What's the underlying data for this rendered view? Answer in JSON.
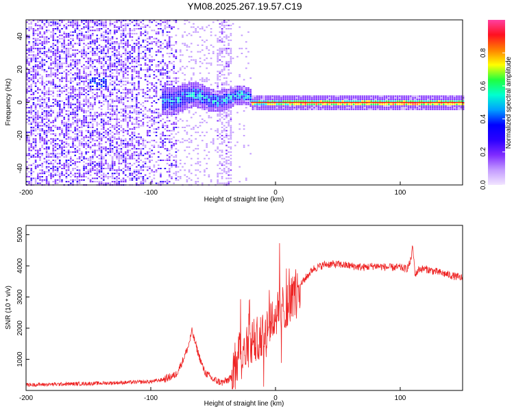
{
  "title": "YM08.2025.267.19.57.C19",
  "chart_data": [
    {
      "type": "heatmap",
      "panel": "spectrogram",
      "xlabel": "Height of straight line (km)",
      "ylabel": "Frequency (Hz)",
      "xlim": [
        -200,
        150
      ],
      "ylim": [
        -50,
        50
      ],
      "xticks": [
        "-200",
        "-100",
        "0",
        "100"
      ],
      "yticks": [
        "40",
        "20",
        "0",
        "-20",
        "-40"
      ],
      "xtick_values": [
        -200,
        -100,
        0,
        100
      ],
      "ytick_values": [
        40,
        20,
        0,
        -20,
        -40
      ],
      "colorbar": {
        "label": "Normalized spectral amplitude",
        "range": [
          0,
          1
        ],
        "ticks": [
          "0.0",
          "0.2",
          "0.4",
          "0.6",
          "0.8"
        ],
        "tick_values": [
          0.0,
          0.2,
          0.4,
          0.6,
          0.8
        ],
        "colormap": [
          "#f2e6ff",
          "#c39bff",
          "#7f2bff",
          "#2a00ff",
          "#0000ff",
          "#00a0ff",
          "#00ffd0",
          "#20ff40",
          "#ffff00",
          "#ff8000",
          "#ff1020",
          "#ff40a0"
        ]
      },
      "features": {
        "diffuse_noise_region_km": [
          -200,
          -80
        ],
        "noise_stripe_km": [
          -48,
          -35
        ],
        "strong_band_start_km": -90,
        "line_frequency_hz": 0
      }
    },
    {
      "type": "line",
      "panel": "snr",
      "xlabel": "Height of straight line (km)",
      "ylabel": "SNR (10 * v/v)",
      "xlim": [
        -200,
        150
      ],
      "ylim": [
        0,
        5300
      ],
      "xticks": [
        "-200",
        "-100",
        "0",
        "100"
      ],
      "yticks": [
        "5000",
        "4000",
        "3000",
        "2000",
        "1000"
      ],
      "xtick_values": [
        -200,
        -100,
        0,
        100
      ],
      "ytick_values": [
        5000,
        4000,
        3000,
        2000,
        1000
      ],
      "color": "#ee2222",
      "series": [
        {
          "name": "SNR",
          "x": [
            -200,
            -150,
            -100,
            -90,
            -80,
            -75,
            -70,
            -67,
            -62,
            -57,
            -50,
            -43,
            -40,
            -35,
            -30,
            -25,
            -20,
            -15,
            -10,
            -5,
            0,
            5,
            10,
            20,
            30,
            40,
            50,
            60,
            70,
            80,
            90,
            100,
            105,
            108,
            110,
            112,
            115,
            120,
            130,
            140,
            150
          ],
          "y": [
            180,
            220,
            280,
            350,
            500,
            900,
            1400,
            1900,
            1200,
            600,
            350,
            250,
            300,
            400,
            1200,
            1500,
            1600,
            1700,
            1800,
            2200,
            2400,
            2600,
            2800,
            3400,
            3900,
            4050,
            4050,
            4000,
            3950,
            4000,
            3950,
            3950,
            3900,
            4100,
            4600,
            3700,
            3900,
            3900,
            3800,
            3700,
            3600
          ]
        }
      ]
    }
  ]
}
